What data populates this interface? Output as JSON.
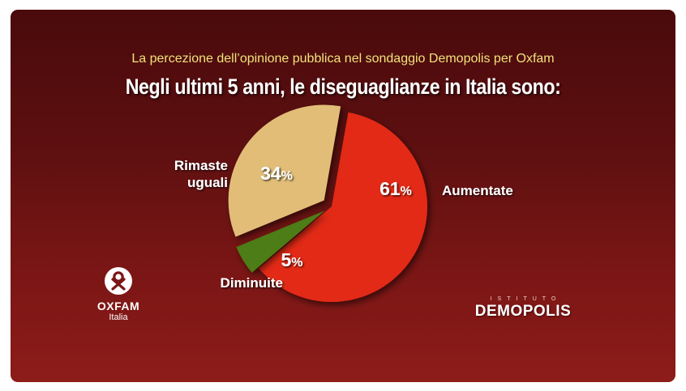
{
  "header": {
    "subtitle": "La percezione dell’opinione pubblica nel sondaggio Demopolis per Oxfam",
    "title": "Negli ultimi 5 anni, le diseguaglianze in Italia sono:"
  },
  "chart_data": {
    "type": "pie",
    "title": "Negli ultimi 5 anni, le diseguaglianze in Italia sono:",
    "subtitle": "La percezione dell’opinione pubblica nel sondaggio Demopolis per Oxfam",
    "slices": [
      {
        "label": "Aumentate",
        "value": 61,
        "value_label": "61",
        "unit": "%",
        "color": "#e22a12"
      },
      {
        "label": "Diminuite",
        "value": 5,
        "value_label": "5",
        "unit": "%",
        "color": "#4e7d17"
      },
      {
        "label": "Rimaste uguali",
        "label_lines": [
          "Rimaste",
          "uguali"
        ],
        "value": 34,
        "value_label": "34",
        "unit": "%",
        "color": "#e2bd78"
      }
    ]
  },
  "logos": {
    "oxfam": {
      "name": "OXFAM",
      "sub": "Italia"
    },
    "demopolis": {
      "prefix": "ISTITUTO",
      "name": "DEMOPOLIS"
    }
  },
  "colors": {
    "subtitle": "#f1e27a",
    "background_top": "#4a0a0b",
    "background_bottom": "#8d1c19"
  }
}
